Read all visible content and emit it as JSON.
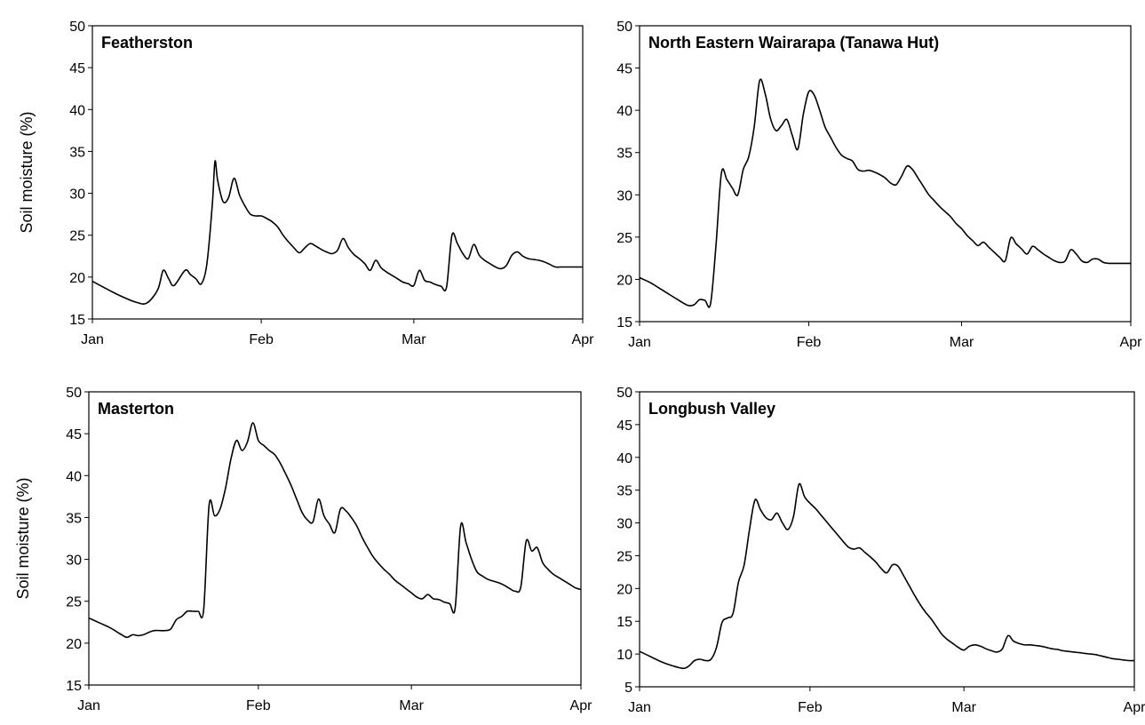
{
  "chart_data": [
    {
      "type": "line",
      "title": "Featherston",
      "ylabel": "Soil moisture (%)",
      "xlabel": "",
      "ylim": [
        15,
        50
      ],
      "yticks": [
        "50",
        "45",
        "40",
        "35",
        "30",
        "25",
        "20",
        "15"
      ],
      "xticks": [
        "Jan",
        "Feb",
        "Mar",
        "Apr"
      ],
      "xtick_days": [
        0,
        31,
        59,
        90
      ],
      "grid": false,
      "series": [
        {
          "x": [
            0,
            2,
            5,
            8,
            10,
            12,
            13,
            14,
            15,
            17,
            18,
            19,
            20,
            21,
            22,
            22.5,
            23,
            24,
            25,
            26,
            27,
            28,
            29,
            30,
            31,
            32,
            33,
            34,
            35,
            36,
            37,
            38,
            39,
            40,
            41,
            42,
            43,
            44,
            45,
            46,
            47,
            48,
            49,
            50,
            51,
            52,
            53,
            54,
            55,
            56,
            57,
            58,
            59,
            60,
            61,
            62,
            63,
            64,
            65,
            66,
            67,
            68,
            69,
            70,
            71,
            72,
            73,
            74,
            75,
            76,
            77,
            78,
            79,
            80,
            81,
            82,
            83,
            84,
            85,
            86,
            87,
            88,
            89,
            90
          ],
          "y": [
            19.5,
            18.8,
            17.8,
            17.0,
            16.9,
            18.5,
            20.8,
            19.8,
            19.0,
            20.8,
            20.3,
            19.8,
            19.2,
            21.5,
            28.5,
            33.8,
            31.5,
            29.0,
            29.5,
            31.8,
            29.8,
            28.5,
            27.5,
            27.3,
            27.3,
            27.0,
            26.6,
            26.0,
            25.0,
            24.2,
            23.5,
            22.9,
            23.5,
            24.0,
            23.7,
            23.3,
            23.0,
            22.8,
            23.2,
            24.6,
            23.5,
            22.7,
            22.2,
            21.6,
            20.8,
            22.0,
            21.1,
            20.6,
            20.2,
            19.8,
            19.4,
            19.2,
            19.0,
            20.8,
            19.6,
            19.4,
            19.1,
            18.9,
            18.8,
            25.0,
            24.0,
            22.8,
            22.2,
            23.9,
            22.6,
            22.0,
            21.6,
            21.2,
            21.0,
            21.4,
            22.6,
            23.0,
            22.5,
            22.2,
            22.1,
            22.0,
            21.8,
            21.5,
            21.2,
            21.2,
            21.2,
            21.2,
            21.2,
            21.2
          ]
        }
      ]
    },
    {
      "type": "line",
      "title": "North Eastern Wairarapa (Tanawa Hut)",
      "ylabel": "",
      "xlabel": "",
      "ylim": [
        15,
        50
      ],
      "yticks": [
        "50",
        "45",
        "40",
        "35",
        "30",
        "25",
        "20",
        "15"
      ],
      "xticks": [
        "Jan",
        "Feb",
        "Mar",
        "Apr"
      ],
      "xtick_days": [
        0,
        31,
        59,
        90
      ],
      "grid": false,
      "series": [
        {
          "x": [
            0,
            2,
            4,
            6,
            8,
            9,
            10,
            11,
            12,
            13,
            14,
            15,
            16,
            17,
            18,
            19,
            20,
            21,
            22,
            23,
            24,
            25,
            26,
            27,
            28,
            29,
            30,
            31,
            32,
            33,
            34,
            35,
            36,
            37,
            38,
            39,
            40,
            41,
            42,
            43,
            44,
            45,
            46,
            47,
            48,
            49,
            50,
            51,
            52,
            53,
            54,
            55,
            56,
            57,
            58,
            59,
            60,
            61,
            62,
            63,
            64,
            65,
            66,
            67,
            68,
            69,
            70,
            71,
            72,
            73,
            74,
            75,
            76,
            77,
            78,
            79,
            80,
            81,
            82,
            83,
            84,
            85,
            86,
            87,
            88,
            89,
            90
          ],
          "y": [
            20.2,
            19.6,
            18.8,
            18.0,
            17.2,
            16.9,
            17.0,
            17.6,
            17.5,
            17.1,
            24.0,
            32.6,
            31.8,
            30.8,
            30.0,
            33.0,
            34.5,
            38.0,
            43.5,
            42.0,
            39.0,
            37.6,
            38.2,
            38.9,
            37.0,
            35.4,
            39.5,
            42.2,
            41.8,
            40.0,
            38.0,
            36.8,
            35.6,
            34.7,
            34.3,
            34.0,
            33.0,
            32.8,
            32.9,
            32.7,
            32.4,
            32.0,
            31.4,
            31.2,
            32.2,
            33.4,
            33.0,
            32.0,
            31.0,
            30.0,
            29.3,
            28.6,
            28.0,
            27.4,
            26.6,
            26.0,
            25.2,
            24.6,
            24.0,
            24.4,
            23.8,
            23.2,
            22.6,
            22.2,
            24.9,
            24.2,
            23.6,
            23.0,
            23.9,
            23.5,
            23.0,
            22.6,
            22.2,
            22.0,
            22.2,
            23.5,
            23.0,
            22.2,
            22.0,
            22.4,
            22.4,
            22.0,
            21.9,
            21.9,
            21.9,
            21.9,
            21.9
          ]
        }
      ]
    },
    {
      "type": "line",
      "title": "Masterton",
      "ylabel": "Soil moisture (%)",
      "xlabel": "",
      "ylim": [
        15,
        50
      ],
      "yticks": [
        "50",
        "45",
        "40",
        "35",
        "30",
        "25",
        "20",
        "15"
      ],
      "xticks": [
        "Jan",
        "Feb",
        "Mar",
        "Apr"
      ],
      "xtick_days": [
        0,
        31,
        59,
        90
      ],
      "grid": false,
      "series": [
        {
          "x": [
            0,
            2,
            4,
            6,
            7,
            8,
            9,
            10,
            11,
            12,
            13,
            14,
            15,
            16,
            17,
            18,
            19,
            20,
            21,
            22,
            23,
            24,
            25,
            26,
            27,
            28,
            29,
            30,
            31,
            32,
            33,
            34,
            35,
            36,
            37,
            38,
            39,
            40,
            41,
            42,
            43,
            44,
            45,
            46,
            47,
            48,
            49,
            50,
            51,
            52,
            53,
            54,
            55,
            56,
            57,
            58,
            59,
            60,
            61,
            62,
            63,
            64,
            65,
            66,
            67,
            68,
            69,
            70,
            71,
            72,
            73,
            74,
            75,
            76,
            77,
            78,
            79,
            80,
            81,
            82,
            83,
            84,
            85,
            86,
            87,
            88,
            89,
            90
          ],
          "y": [
            23.0,
            22.4,
            21.8,
            21.0,
            20.7,
            21.0,
            20.9,
            21.0,
            21.3,
            21.5,
            21.5,
            21.5,
            21.7,
            22.8,
            23.2,
            23.8,
            23.8,
            23.8,
            24.0,
            36.5,
            35.2,
            36.0,
            38.5,
            42.0,
            44.2,
            43.0,
            44.0,
            46.3,
            44.2,
            43.6,
            43.0,
            42.5,
            41.5,
            40.2,
            38.8,
            37.2,
            35.6,
            34.7,
            34.5,
            37.2,
            35.2,
            34.2,
            33.2,
            36.0,
            35.8,
            35.0,
            34.0,
            32.6,
            31.4,
            30.3,
            29.5,
            28.8,
            28.2,
            27.5,
            27.0,
            26.5,
            26.0,
            25.5,
            25.3,
            25.8,
            25.3,
            25.2,
            24.9,
            24.7,
            24.2,
            34.0,
            32.0,
            30.0,
            28.5,
            28.0,
            27.6,
            27.4,
            27.2,
            26.9,
            26.5,
            26.2,
            26.7,
            32.2,
            31.0,
            31.4,
            29.6,
            28.8,
            28.2,
            27.8,
            27.4,
            27.0,
            26.6,
            26.4
          ]
        }
      ]
    },
    {
      "type": "line",
      "title": "Longbush Valley",
      "ylabel": "",
      "xlabel": "",
      "ylim": [
        5,
        50
      ],
      "yticks": [
        "50",
        "45",
        "40",
        "35",
        "30",
        "25",
        "20",
        "15",
        "10",
        "5"
      ],
      "xticks": [
        "Jan",
        "Feb",
        "Mar",
        "Apr"
      ],
      "xtick_days": [
        0,
        31,
        59,
        90
      ],
      "grid": false,
      "series": [
        {
          "x": [
            0,
            2,
            4,
            6,
            8,
            9,
            10,
            11,
            12,
            13,
            14,
            15,
            16,
            17,
            18,
            19,
            20,
            21,
            22,
            23,
            24,
            25,
            26,
            27,
            28,
            29,
            30,
            31,
            32,
            33,
            34,
            35,
            36,
            37,
            38,
            39,
            40,
            41,
            42,
            43,
            44,
            45,
            46,
            47,
            48,
            49,
            50,
            51,
            52,
            53,
            54,
            55,
            56,
            57,
            58,
            59,
            60,
            61,
            62,
            63,
            64,
            65,
            66,
            67,
            68,
            69,
            70,
            71,
            72,
            73,
            74,
            75,
            76,
            77,
            78,
            79,
            80,
            81,
            82,
            83,
            84,
            85,
            86,
            87,
            88,
            89,
            90
          ],
          "y": [
            10.4,
            9.6,
            8.8,
            8.2,
            7.8,
            8.2,
            9.0,
            9.2,
            9.0,
            9.2,
            11.0,
            14.8,
            15.5,
            16.2,
            21.0,
            23.5,
            29.0,
            33.5,
            32.0,
            30.8,
            30.5,
            31.5,
            30.0,
            29.0,
            31.0,
            35.9,
            34.0,
            33.0,
            32.2,
            31.2,
            30.2,
            29.2,
            28.2,
            27.2,
            26.3,
            26.0,
            26.2,
            25.5,
            24.8,
            24.0,
            23.0,
            22.4,
            23.6,
            23.4,
            22.0,
            20.5,
            19.0,
            17.6,
            16.4,
            15.4,
            14.2,
            13.0,
            12.2,
            11.6,
            11.0,
            10.6,
            11.2,
            11.4,
            11.2,
            10.8,
            10.5,
            10.3,
            10.8,
            12.8,
            12.0,
            11.6,
            11.4,
            11.4,
            11.3,
            11.2,
            11.0,
            10.8,
            10.7,
            10.5,
            10.4,
            10.3,
            10.2,
            10.1,
            10.0,
            9.9,
            9.7,
            9.5,
            9.3,
            9.2,
            9.1,
            9.0,
            9.0
          ]
        }
      ]
    }
  ]
}
